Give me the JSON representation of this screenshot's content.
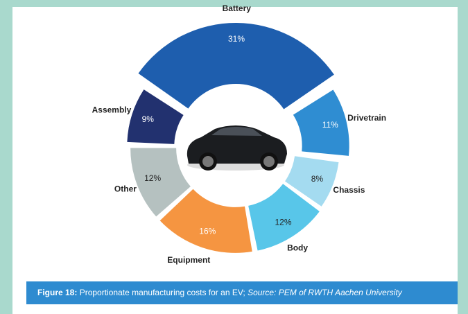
{
  "chart_data": {
    "type": "donut",
    "categories": [
      "Battery",
      "Drivetrain",
      "Chassis",
      "Body",
      "Equipment",
      "Other",
      "Assembly"
    ],
    "values": [
      31,
      11,
      8,
      12,
      16,
      12,
      9
    ],
    "value_labels": [
      "31%",
      "11%",
      "8%",
      "12%",
      "16%",
      "12%",
      "9%"
    ],
    "colors": [
      "#1e5eae",
      "#2f8dd2",
      "#a4dbf0",
      "#58c6e9",
      "#f59541",
      "#b5c1c0",
      "#22316f"
    ]
  },
  "caption": {
    "label": "Figure 18:",
    "text": "Proportionate manufacturing costs for an EV;",
    "source": "Source: PEM of RWTH Aachen University"
  }
}
